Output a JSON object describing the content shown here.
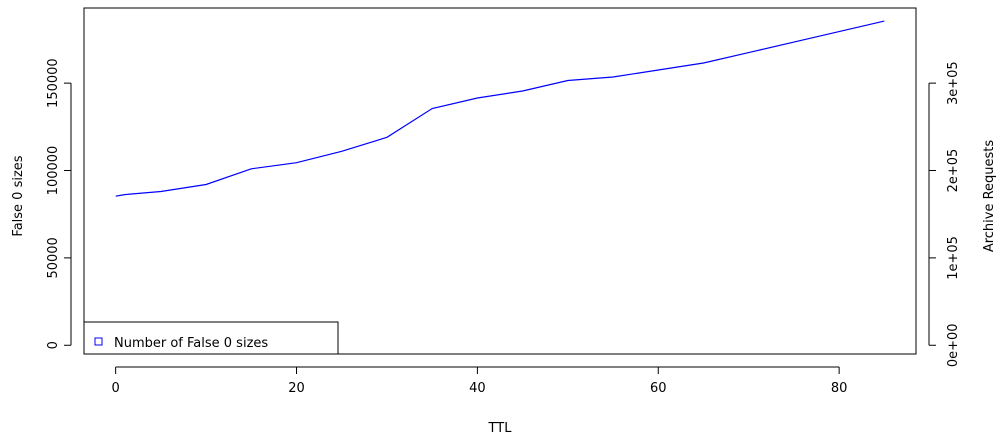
{
  "chart_data": {
    "type": "line",
    "xlabel": "TTL",
    "ylabel": "False 0 sizes",
    "y2label": "Archive Requests",
    "xlim": [
      -3.5,
      88.5
    ],
    "ylim": [
      -5000,
      193000
    ],
    "y2lim": [
      -10000,
      386000
    ],
    "x_ticks": [
      0,
      20,
      40,
      60,
      80
    ],
    "x_tick_labels": [
      "0",
      "20",
      "40",
      "60",
      "80"
    ],
    "y_ticks": [
      0,
      50000,
      100000,
      150000
    ],
    "y_tick_labels": [
      "0",
      "50000",
      "100000",
      "150000"
    ],
    "y2_ticks": [
      0,
      100000,
      200000,
      300000
    ],
    "y2_tick_labels": [
      "0e+00",
      "1e+05",
      "2e+05",
      "3e+05"
    ],
    "grid": false,
    "legend": {
      "position": "bottom-left",
      "entries": [
        "Number of False 0 sizes"
      ]
    },
    "series": [
      {
        "name": "Number of False 0 sizes",
        "color": "#0000ff",
        "x": [
          0,
          1,
          5,
          10,
          15,
          20,
          25,
          30,
          35,
          40,
          45,
          50,
          55,
          60,
          65,
          70,
          75,
          80,
          85
        ],
        "values": [
          85300,
          86200,
          88000,
          92000,
          101000,
          104500,
          111000,
          119000,
          135500,
          141500,
          145500,
          151500,
          153500,
          157500,
          161500,
          167500,
          173500,
          179500,
          185500
        ]
      }
    ]
  }
}
